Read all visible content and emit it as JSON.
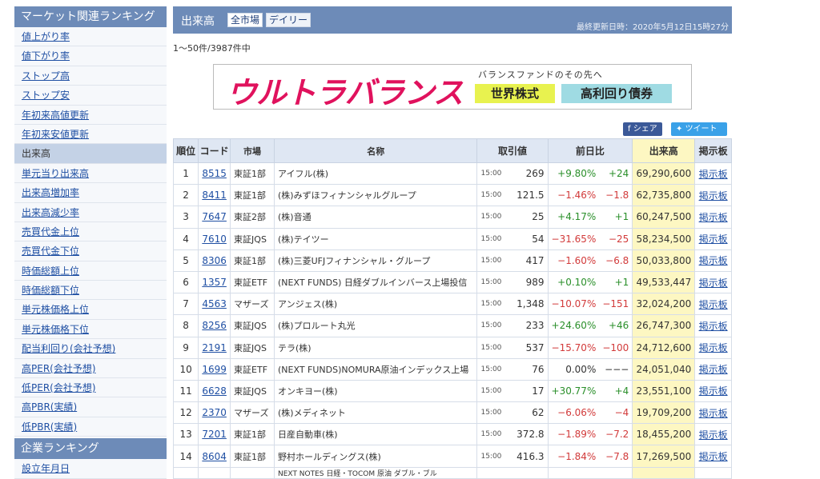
{
  "sidebar": {
    "heading1": "マーケット関連ランキング",
    "items": [
      {
        "label": "値上がり率",
        "active": false
      },
      {
        "label": "値下がり率",
        "active": false
      },
      {
        "label": "ストップ高",
        "active": false
      },
      {
        "label": "ストップ安",
        "active": false
      },
      {
        "label": "年初来高値更新",
        "active": false
      },
      {
        "label": "年初来安値更新",
        "active": false
      },
      {
        "label": "出来高",
        "active": true
      },
      {
        "label": "単元当り出来高",
        "active": false
      },
      {
        "label": "出来高増加率",
        "active": false
      },
      {
        "label": "出来高減少率",
        "active": false
      },
      {
        "label": "売買代金上位",
        "active": false
      },
      {
        "label": "売買代金下位",
        "active": false
      },
      {
        "label": "時価総額上位",
        "active": false
      },
      {
        "label": "時価総額下位",
        "active": false
      },
      {
        "label": "単元株価格上位",
        "active": false
      },
      {
        "label": "単元株価格下位",
        "active": false
      },
      {
        "label": "配当利回り(会社予想)",
        "active": false
      },
      {
        "label": "高PER(会社予想)",
        "active": false
      },
      {
        "label": "低PER(会社予想)",
        "active": false
      },
      {
        "label": "高PBR(実績)",
        "active": false
      },
      {
        "label": "低PBR(実績)",
        "active": false
      }
    ],
    "heading2": "企業ランキング",
    "items2": [
      {
        "label": "設立年月日"
      }
    ]
  },
  "header": {
    "title": "出来高",
    "filter_market": "全市場",
    "filter_period": "デイリー",
    "updated": "最終更新日時：2020年5月12日15時27分"
  },
  "count_text": "1〜50件/3987件中",
  "banner": {
    "logo": "ウルトラバランス",
    "tagline": "バランスファンドのその先へ",
    "box1": "世界株式",
    "box2": "高利回り債券"
  },
  "share": {
    "facebook": "シェア",
    "twitter": "ツイート"
  },
  "table": {
    "headers": {
      "rank": "順位",
      "code": "コード",
      "market": "市場",
      "name": "名称",
      "price": "取引値",
      "change": "前日比",
      "volume": "出来高",
      "bbs": "掲示板"
    },
    "rows": [
      {
        "rank": "1",
        "code": "8515",
        "market": "東証1部",
        "name": "アイフル(株)",
        "time": "15:00",
        "price": "269",
        "pct": "+9.80%",
        "diff": "+24",
        "dir": "up",
        "volume": "69,290,600",
        "bbs": "掲示板"
      },
      {
        "rank": "2",
        "code": "8411",
        "market": "東証1部",
        "name": "(株)みずほフィナンシャルグループ",
        "time": "15:00",
        "price": "121.5",
        "pct": "−1.46%",
        "diff": "−1.8",
        "dir": "down",
        "volume": "62,735,800",
        "bbs": "掲示板"
      },
      {
        "rank": "3",
        "code": "7647",
        "market": "東証2部",
        "name": "(株)音通",
        "time": "15:00",
        "price": "25",
        "pct": "+4.17%",
        "diff": "+1",
        "dir": "up",
        "volume": "60,247,500",
        "bbs": "掲示板"
      },
      {
        "rank": "4",
        "code": "7610",
        "market": "東証JQS",
        "name": "(株)テイツー",
        "time": "15:00",
        "price": "54",
        "pct": "−31.65%",
        "diff": "−25",
        "dir": "down",
        "volume": "58,234,500",
        "bbs": "掲示板"
      },
      {
        "rank": "5",
        "code": "8306",
        "market": "東証1部",
        "name": "(株)三菱UFJフィナンシャル・グループ",
        "time": "15:00",
        "price": "417",
        "pct": "−1.60%",
        "diff": "−6.8",
        "dir": "down",
        "volume": "50,033,800",
        "bbs": "掲示板"
      },
      {
        "rank": "6",
        "code": "1357",
        "market": "東証ETF",
        "name": "(NEXT FUNDS) 日経ダブルインバース上場投信",
        "time": "15:00",
        "price": "989",
        "pct": "+0.10%",
        "diff": "+1",
        "dir": "up",
        "volume": "49,533,447",
        "bbs": "掲示板"
      },
      {
        "rank": "7",
        "code": "4563",
        "market": "マザーズ",
        "name": "アンジェス(株)",
        "time": "15:00",
        "price": "1,348",
        "pct": "−10.07%",
        "diff": "−151",
        "dir": "down",
        "volume": "32,024,200",
        "bbs": "掲示板"
      },
      {
        "rank": "8",
        "code": "8256",
        "market": "東証JQS",
        "name": "(株)プロルート丸光",
        "time": "15:00",
        "price": "233",
        "pct": "+24.60%",
        "diff": "+46",
        "dir": "up",
        "volume": "26,747,300",
        "bbs": "掲示板"
      },
      {
        "rank": "9",
        "code": "2191",
        "market": "東証JQS",
        "name": "テラ(株)",
        "time": "15:00",
        "price": "537",
        "pct": "−15.70%",
        "diff": "−100",
        "dir": "down",
        "volume": "24,712,600",
        "bbs": "掲示板"
      },
      {
        "rank": "10",
        "code": "1699",
        "market": "東証ETF",
        "name": "(NEXT FUNDS)NOMURA原油インデックス上場",
        "time": "15:00",
        "price": "76",
        "pct": "0.00%",
        "diff": "−−−",
        "dir": "flat",
        "volume": "24,051,040",
        "bbs": "掲示板"
      },
      {
        "rank": "11",
        "code": "6628",
        "market": "東証JQS",
        "name": "オンキヨー(株)",
        "time": "15:00",
        "price": "17",
        "pct": "+30.77%",
        "diff": "+4",
        "dir": "up",
        "volume": "23,551,100",
        "bbs": "掲示板"
      },
      {
        "rank": "12",
        "code": "2370",
        "market": "マザーズ",
        "name": "(株)メディネット",
        "time": "15:00",
        "price": "62",
        "pct": "−6.06%",
        "diff": "−4",
        "dir": "down",
        "volume": "19,709,200",
        "bbs": "掲示板"
      },
      {
        "rank": "13",
        "code": "7201",
        "market": "東証1部",
        "name": "日産自動車(株)",
        "time": "15:00",
        "price": "372.8",
        "pct": "−1.89%",
        "diff": "−7.2",
        "dir": "down",
        "volume": "18,455,200",
        "bbs": "掲示板"
      },
      {
        "rank": "14",
        "code": "8604",
        "market": "東証1部",
        "name": "野村ホールディングス(株)",
        "time": "15:00",
        "price": "416.3",
        "pct": "−1.84%",
        "diff": "−7.8",
        "dir": "down",
        "volume": "17,269,500",
        "bbs": "掲示板"
      }
    ],
    "partial_row_name": "NEXT NOTES 日経・TOCOM 原油 ダブル・ブル"
  },
  "colors": {
    "header_blue": "#6d8bb8",
    "up": "#2a8f2a",
    "down": "#d23a3a",
    "volume_bg": "#fdf7c2"
  }
}
